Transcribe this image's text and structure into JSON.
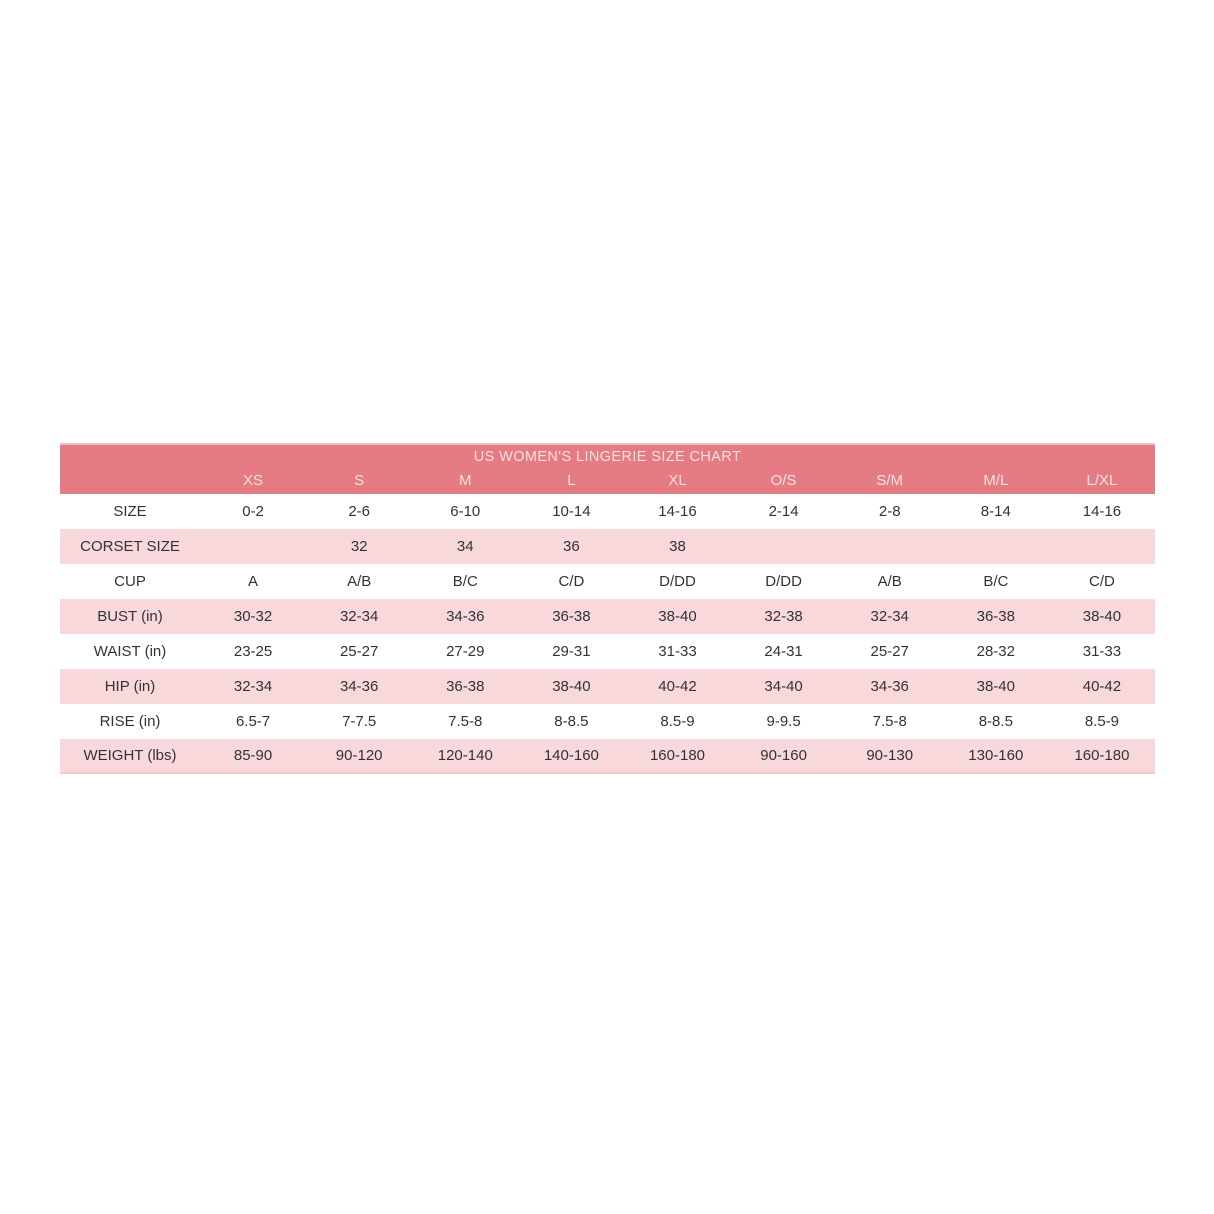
{
  "colors": {
    "header_bg": "#e57c83",
    "header_text": "#f7e0e2",
    "row_pink": "#f9d8dc",
    "row_white": "#ffffff",
    "body_text": "#333333",
    "top_line": "#e8c2c6",
    "bottom_line": "#f0c9ce",
    "page_bg": "#ffffff"
  },
  "chart_data": {
    "type": "table",
    "title": "US WOMEN'S LINGERIE SIZE CHART",
    "columns": [
      "XS",
      "S",
      "M",
      "L",
      "XL",
      "O/S",
      "S/M",
      "M/L",
      "L/XL"
    ],
    "rows": [
      {
        "label": "SIZE",
        "values": [
          "0-2",
          "2-6",
          "6-10",
          "10-14",
          "14-16",
          "2-14",
          "2-8",
          "8-14",
          "14-16"
        ]
      },
      {
        "label": "CORSET SIZE",
        "values": [
          "",
          "32",
          "34",
          "36",
          "38",
          "",
          "",
          "",
          ""
        ]
      },
      {
        "label": "CUP",
        "values": [
          "A",
          "A/B",
          "B/C",
          "C/D",
          "D/DD",
          "D/DD",
          "A/B",
          "B/C",
          "C/D"
        ]
      },
      {
        "label": "BUST (in)",
        "values": [
          "30-32",
          "32-34",
          "34-36",
          "36-38",
          "38-40",
          "32-38",
          "32-34",
          "36-38",
          "38-40"
        ]
      },
      {
        "label": "WAIST (in)",
        "values": [
          "23-25",
          "25-27",
          "27-29",
          "29-31",
          "31-33",
          "24-31",
          "25-27",
          "28-32",
          "31-33"
        ]
      },
      {
        "label": "HIP (in)",
        "values": [
          "32-34",
          "34-36",
          "36-38",
          "38-40",
          "40-42",
          "34-40",
          "34-36",
          "38-40",
          "40-42"
        ]
      },
      {
        "label": "RISE (in)",
        "values": [
          "6.5-7",
          "7-7.5",
          "7.5-8",
          "8-8.5",
          "8.5-9",
          "9-9.5",
          "7.5-8",
          "8-8.5",
          "8.5-9"
        ]
      },
      {
        "label": "WEIGHT (lbs)",
        "values": [
          "85-90",
          "90-120",
          "120-140",
          "140-160",
          "160-180",
          "90-160",
          "90-130",
          "130-160",
          "160-180"
        ]
      }
    ],
    "layout": {
      "legend": "none",
      "grid": "alternating-row-shading",
      "header_position": "top"
    }
  }
}
